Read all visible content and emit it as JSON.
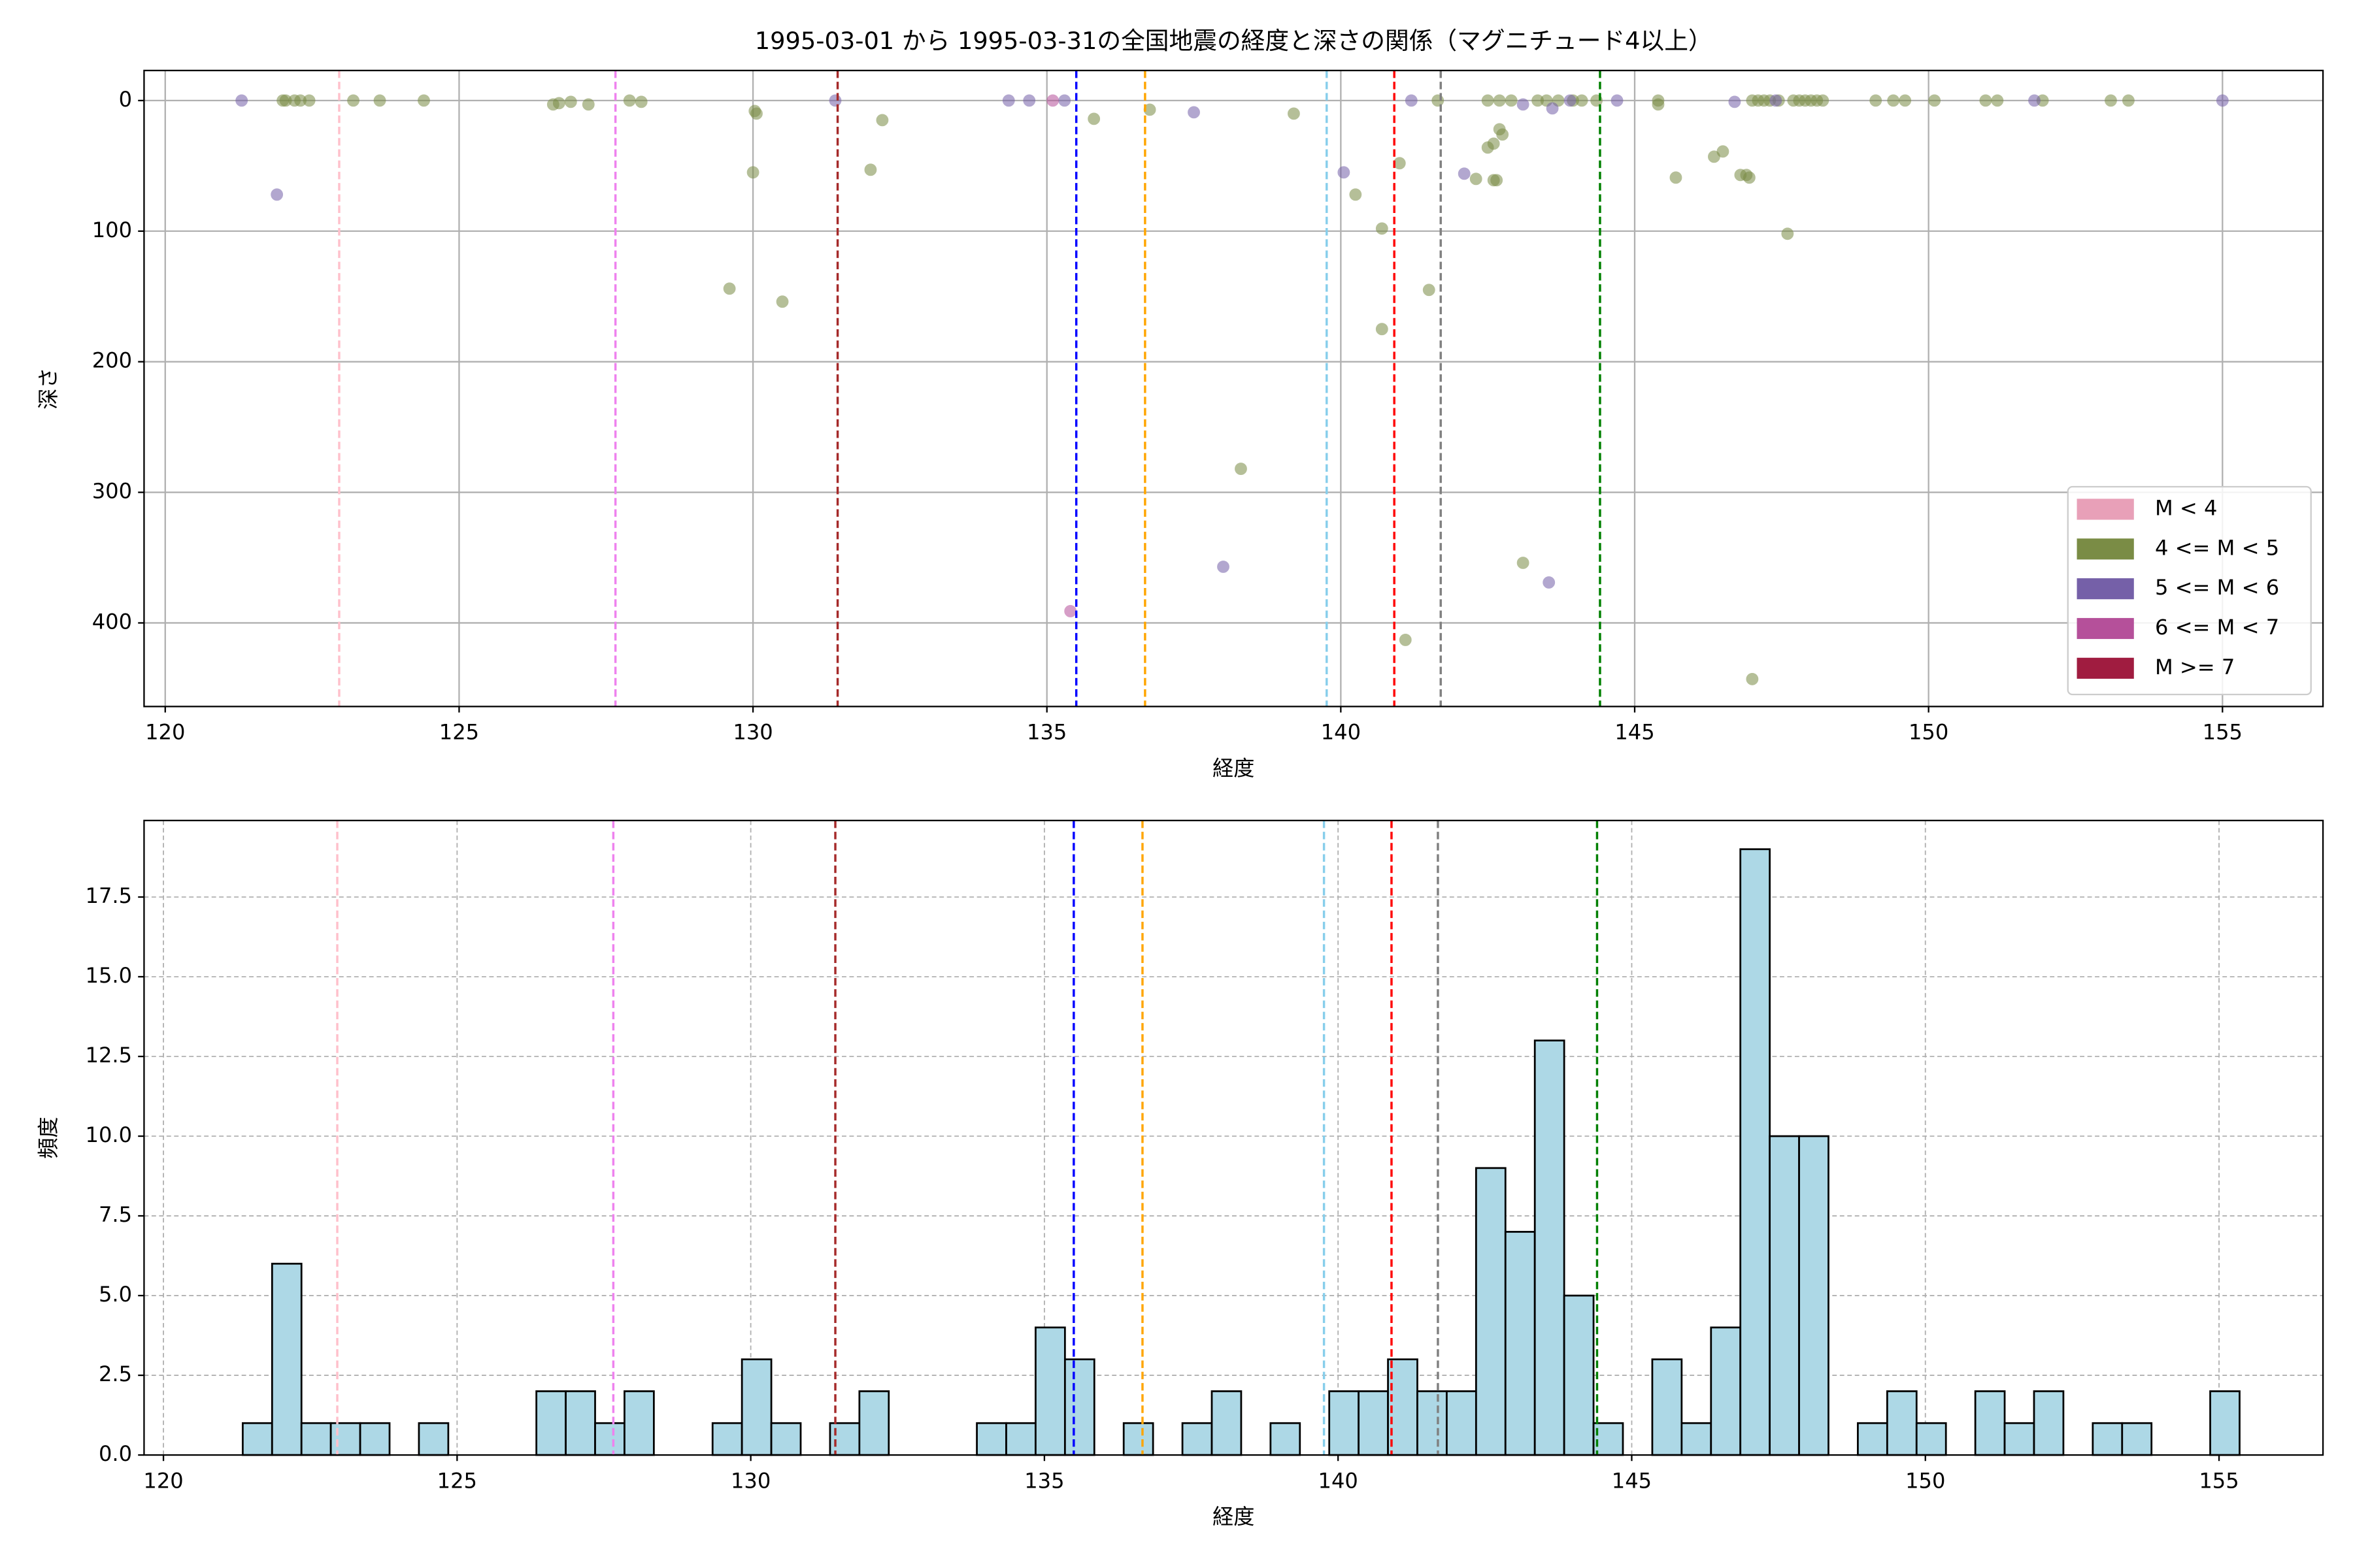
{
  "chart_data": [
    {
      "type": "scatter",
      "title": "1995-03-01 から 1995-03-31の全国地震の経度と深さの関係（マグニチュード4以上）",
      "xlabel": "経度",
      "ylabel": "深さ",
      "xlim": [
        119.64,
        156.71
      ],
      "ylim": [
        464,
        -23
      ],
      "xticks": [
        120,
        125,
        130,
        135,
        140,
        145,
        150,
        155
      ],
      "yticks": [
        0,
        100,
        200,
        300,
        400
      ],
      "grid": "solid",
      "legend": "lower right",
      "series": [
        {
          "name": "M < 4",
          "color": "#e8a0b8",
          "x": [],
          "values": []
        },
        {
          "name": "4 <= M < 5",
          "color": "#7a8c45",
          "x": [
            122.0,
            122.05,
            122.2,
            122.3,
            122.45,
            123.2,
            123.65,
            124.4,
            126.6,
            126.7,
            126.9,
            127.2,
            127.9,
            128.1,
            130.03,
            130.06,
            130.0,
            129.6,
            130.5,
            132.0,
            132.2,
            135.8,
            136.75,
            138.3,
            139.2,
            140.25,
            140.7,
            140.7,
            141.0,
            141.5,
            141.1,
            141.65,
            142.5,
            142.7,
            142.9,
            142.3,
            142.5,
            142.6,
            142.7,
            142.75,
            142.6,
            142.65,
            143.35,
            143.5,
            143.7,
            143.95,
            144.1,
            144.35,
            145.4,
            145.4,
            145.7,
            146.35,
            146.5,
            146.8,
            146.9,
            146.95,
            147.6,
            147.0,
            143.1,
            147.0,
            147.1,
            147.2,
            147.3,
            147.45,
            147.7,
            147.8,
            147.9,
            148.0,
            148.1,
            148.2,
            149.1,
            149.4,
            149.6,
            150.1,
            150.97,
            151.17,
            151.94,
            153.1,
            153.4
          ],
          "values": [
            0,
            0,
            0,
            0,
            0,
            0,
            0,
            0,
            3,
            2,
            1,
            3,
            0,
            1,
            8,
            10,
            55,
            144,
            154,
            53,
            15,
            14,
            7,
            282,
            10,
            72,
            98,
            175,
            48,
            145,
            413,
            0,
            0,
            0,
            0,
            60,
            36,
            33,
            22,
            26,
            61,
            61,
            0,
            0,
            0,
            0,
            0,
            0,
            0,
            3,
            59,
            43,
            39,
            57,
            57,
            59,
            102,
            443,
            354,
            0,
            0,
            0,
            0,
            0,
            0,
            0,
            0,
            0,
            0,
            0,
            0,
            0,
            0,
            0,
            0,
            0,
            0,
            0,
            0
          ]
        },
        {
          "name": "5 <= M < 6",
          "color": "#7560a8",
          "x": [
            121.3,
            121.9,
            131.4,
            134.35,
            134.7,
            135.3,
            137.5,
            140.05,
            141.2,
            142.1,
            143.1,
            143.6,
            143.9,
            144.7,
            146.7,
            147.4,
            151.8,
            155.0,
            138.0,
            143.54
          ],
          "values": [
            0,
            72,
            0,
            0,
            0,
            0,
            9,
            55,
            0,
            56,
            3,
            6,
            0,
            0,
            1,
            0,
            0,
            0,
            357,
            369
          ]
        },
        {
          "name": "6 <= M < 7",
          "color": "#b5509a",
          "x": [
            135.1,
            135.4
          ],
          "values": [
            0,
            391
          ]
        },
        {
          "name": "M >= 7",
          "color": "#a01c40",
          "x": [],
          "values": []
        }
      ],
      "vlines": [
        {
          "x": 122.96,
          "color": "pink"
        },
        {
          "x": 127.66,
          "color": "violet"
        },
        {
          "x": 131.44,
          "color": "brown"
        },
        {
          "x": 135.5,
          "color": "blue"
        },
        {
          "x": 136.67,
          "color": "orange"
        },
        {
          "x": 139.76,
          "color": "skyblue"
        },
        {
          "x": 140.91,
          "color": "red"
        },
        {
          "x": 141.7,
          "color": "gray"
        },
        {
          "x": 144.41,
          "color": "green"
        }
      ]
    },
    {
      "type": "histogram",
      "xlabel": "経度",
      "ylabel": "頻度",
      "color": "#add8e6",
      "xlim": [
        119.67,
        156.77
      ],
      "ylim": [
        0,
        19.9
      ],
      "xticks": [
        120,
        125,
        130,
        135,
        140,
        145,
        150,
        155
      ],
      "yticks": [
        {
          "value": 0,
          "label": "0.0"
        },
        2.5,
        {
          "value": 5,
          "label": "5.0"
        },
        7.5,
        {
          "value": 10,
          "label": "10.0"
        },
        12.5,
        {
          "value": 15,
          "label": "15.0"
        },
        17.5
      ],
      "grid": "dashed",
      "bins": [
        121.35,
        121.85,
        122.35,
        122.85,
        123.35,
        123.85,
        124.35,
        124.85,
        125.35,
        125.85,
        126.35,
        126.85,
        127.35,
        127.85,
        128.35,
        128.85,
        129.35,
        129.85,
        130.35,
        130.85,
        131.35,
        131.85,
        132.35,
        132.85,
        133.35,
        133.85,
        134.35,
        134.85,
        135.35,
        135.85,
        136.35,
        136.85,
        137.35,
        137.85,
        138.35,
        138.85,
        139.35,
        139.85,
        140.35,
        140.85,
        141.35,
        141.85,
        142.35,
        142.85,
        143.35,
        143.85,
        144.35,
        144.85,
        145.35,
        145.85,
        146.35,
        146.85,
        147.35,
        147.85,
        148.35,
        148.85,
        149.35,
        149.85,
        150.35,
        150.85,
        151.35,
        151.85,
        152.35,
        152.85,
        153.35,
        153.85,
        154.35,
        154.85,
        155.35
      ],
      "values": [
        1,
        6,
        1,
        1,
        1,
        0,
        1,
        0,
        0,
        0,
        2,
        2,
        1,
        2,
        0,
        0,
        1,
        3,
        1,
        0,
        1,
        2,
        0,
        0,
        0,
        1,
        1,
        4,
        3,
        0,
        1,
        0,
        1,
        2,
        0,
        1,
        0,
        2,
        2,
        3,
        2,
        2,
        9,
        7,
        13,
        5,
        1,
        0,
        3,
        1,
        4,
        19,
        10,
        10,
        0,
        1,
        2,
        1,
        0,
        2,
        1,
        2,
        0,
        1,
        1,
        0,
        0,
        2
      ],
      "vlines": [
        {
          "x": 122.96,
          "color": "pink"
        },
        {
          "x": 127.66,
          "color": "violet"
        },
        {
          "x": 131.44,
          "color": "brown"
        },
        {
          "x": 135.5,
          "color": "blue"
        },
        {
          "x": 136.67,
          "color": "orange"
        },
        {
          "x": 139.76,
          "color": "skyblue"
        },
        {
          "x": 140.91,
          "color": "red"
        },
        {
          "x": 141.7,
          "color": "gray"
        },
        {
          "x": 144.41,
          "color": "green"
        }
      ]
    }
  ]
}
